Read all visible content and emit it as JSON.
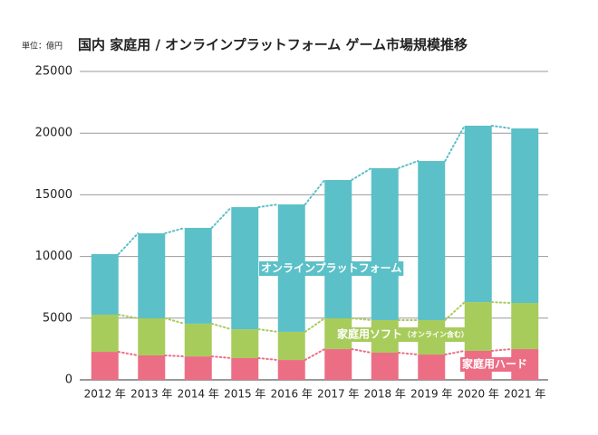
{
  "chart_data": {
    "type": "stacked_bar",
    "title": "国内 家庭用 / オンラインプラットフォーム ゲーム市場規模推移",
    "unit_label": "単位：億円",
    "categories": [
      "2012 年",
      "2013 年",
      "2014 年",
      "2015 年",
      "2016 年",
      "2017 年",
      "2018 年",
      "2019 年",
      "2020 年",
      "2021 年"
    ],
    "series": [
      {
        "name": "家庭用ハード",
        "color": "#ec6e85",
        "values": [
          2270,
          1980,
          1900,
          1760,
          1610,
          2490,
          2200,
          2050,
          2350,
          2490
        ]
      },
      {
        "name": "家庭用ソフト",
        "note": "（オンライン含む）",
        "color": "#a8cc5c",
        "values": [
          3010,
          3010,
          2650,
          2340,
          2280,
          2500,
          2640,
          2790,
          3950,
          3740
        ]
      },
      {
        "name": "オンラインプラットフォーム",
        "color": "#5bc0c8",
        "values": [
          4910,
          6890,
          7770,
          9900,
          10330,
          11210,
          12320,
          12900,
          14300,
          14150
        ]
      }
    ],
    "ylim": [
      0,
      25000
    ],
    "yticks": [
      0,
      5000,
      10000,
      15000,
      20000,
      25000
    ],
    "grid": true
  }
}
